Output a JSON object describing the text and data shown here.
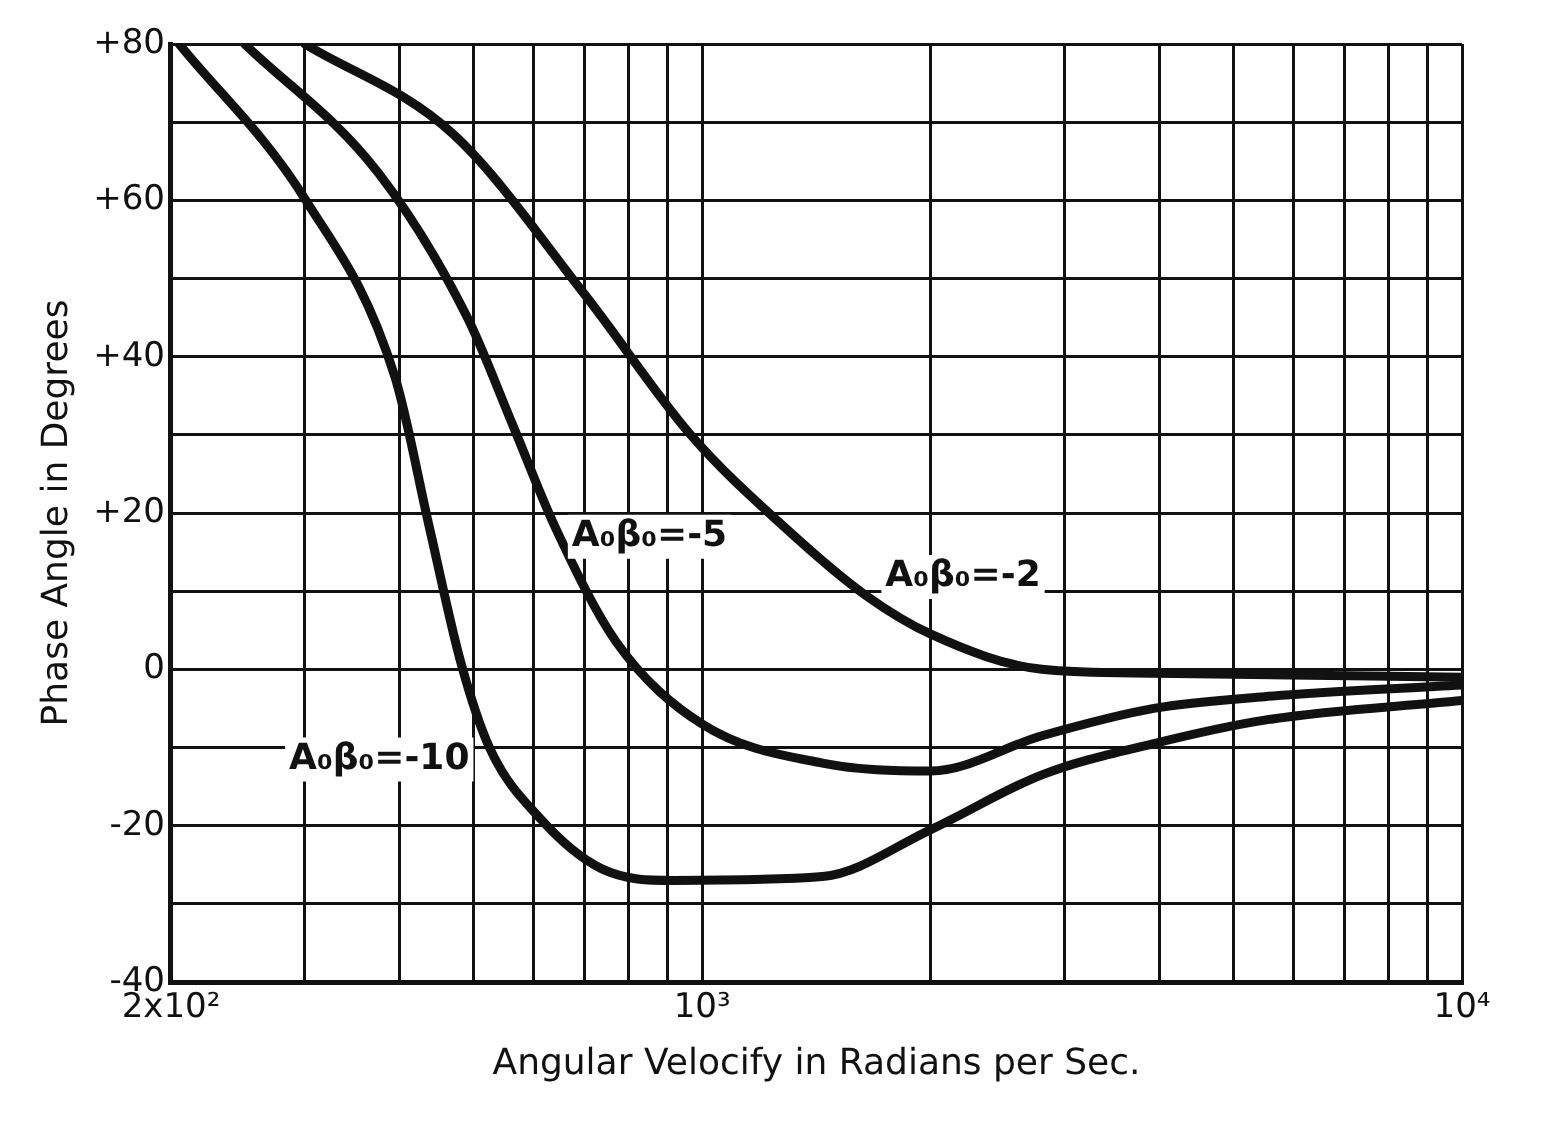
{
  "chart_data": {
    "type": "line",
    "xlabel": "Angular Velocify in Radians per Sec.",
    "ylabel": "Phase Angle in Degrees",
    "log": "x",
    "grid": true,
    "legend": false,
    "marker": "none",
    "line_style": "solid",
    "xlim": [
      200,
      10000
    ],
    "xticks": [
      {
        "value": 200,
        "label": "2x10²"
      },
      {
        "value": 300,
        "label": null
      },
      {
        "value": 400,
        "label": null
      },
      {
        "value": 500,
        "label": null
      },
      {
        "value": 600,
        "label": null
      },
      {
        "value": 700,
        "label": null
      },
      {
        "value": 800,
        "label": null
      },
      {
        "value": 900,
        "label": null
      },
      {
        "value": 1000,
        "label": "10³"
      },
      {
        "value": 2000,
        "label": null
      },
      {
        "value": 3000,
        "label": null
      },
      {
        "value": 4000,
        "label": null
      },
      {
        "value": 5000,
        "label": null
      },
      {
        "value": 6000,
        "label": null
      },
      {
        "value": 7000,
        "label": null
      },
      {
        "value": 8000,
        "label": null
      },
      {
        "value": 9000,
        "label": null
      },
      {
        "value": 10000,
        "label": "10⁴"
      }
    ],
    "ylim": [
      -40,
      80
    ],
    "yticks": [
      {
        "value": -40,
        "label": "-40"
      },
      {
        "value": -30,
        "label": null
      },
      {
        "value": -20,
        "label": "-20"
      },
      {
        "value": -10,
        "label": null
      },
      0,
      {
        "value": 10,
        "label": null
      },
      {
        "value": 20,
        "label": "+20"
      },
      {
        "value": 30,
        "label": null
      },
      {
        "value": 40,
        "label": "+40"
      },
      {
        "value": 50,
        "label": null
      },
      {
        "value": 60,
        "label": "+60"
      },
      {
        "value": 70,
        "label": null
      },
      {
        "value": 80,
        "label": "+80"
      }
    ],
    "series": [
      {
        "name": "A₀β₀=-10",
        "color": "#111111",
        "x": [
          205,
          301,
          394,
          438,
          481,
          525,
          611,
          737,
          918,
          1440,
          2000,
          2800,
          3930,
          5500,
          10000
        ],
        "values": [
          80,
          60,
          37.5,
          18,
          1,
          -10,
          -19,
          -25.5,
          -27,
          -26.5,
          -20.5,
          -13.5,
          -9.5,
          -6.5,
          -4
        ]
      },
      {
        "name": "A₀β₀=-5",
        "color": "#111111",
        "x": [
          250,
          375,
          491,
          562,
          642,
          771,
          1000,
          1440,
          2000,
          2800,
          3930,
          5500,
          10000
        ],
        "values": [
          80,
          63.5,
          45,
          31.5,
          18,
          3.5,
          -7,
          -12,
          -13,
          -8.5,
          -5,
          -3.5,
          -2
        ]
      },
      {
        "name": "A₀β₀=-2",
        "color": "#111111",
        "x": [
          300,
          470,
          700,
          966,
          1290,
          1640,
          2000,
          2800,
          3930,
          10000
        ],
        "values": [
          80,
          68.5,
          48,
          30,
          18,
          9.5,
          4.5,
          0,
          -0.5,
          -1
        ]
      }
    ]
  }
}
